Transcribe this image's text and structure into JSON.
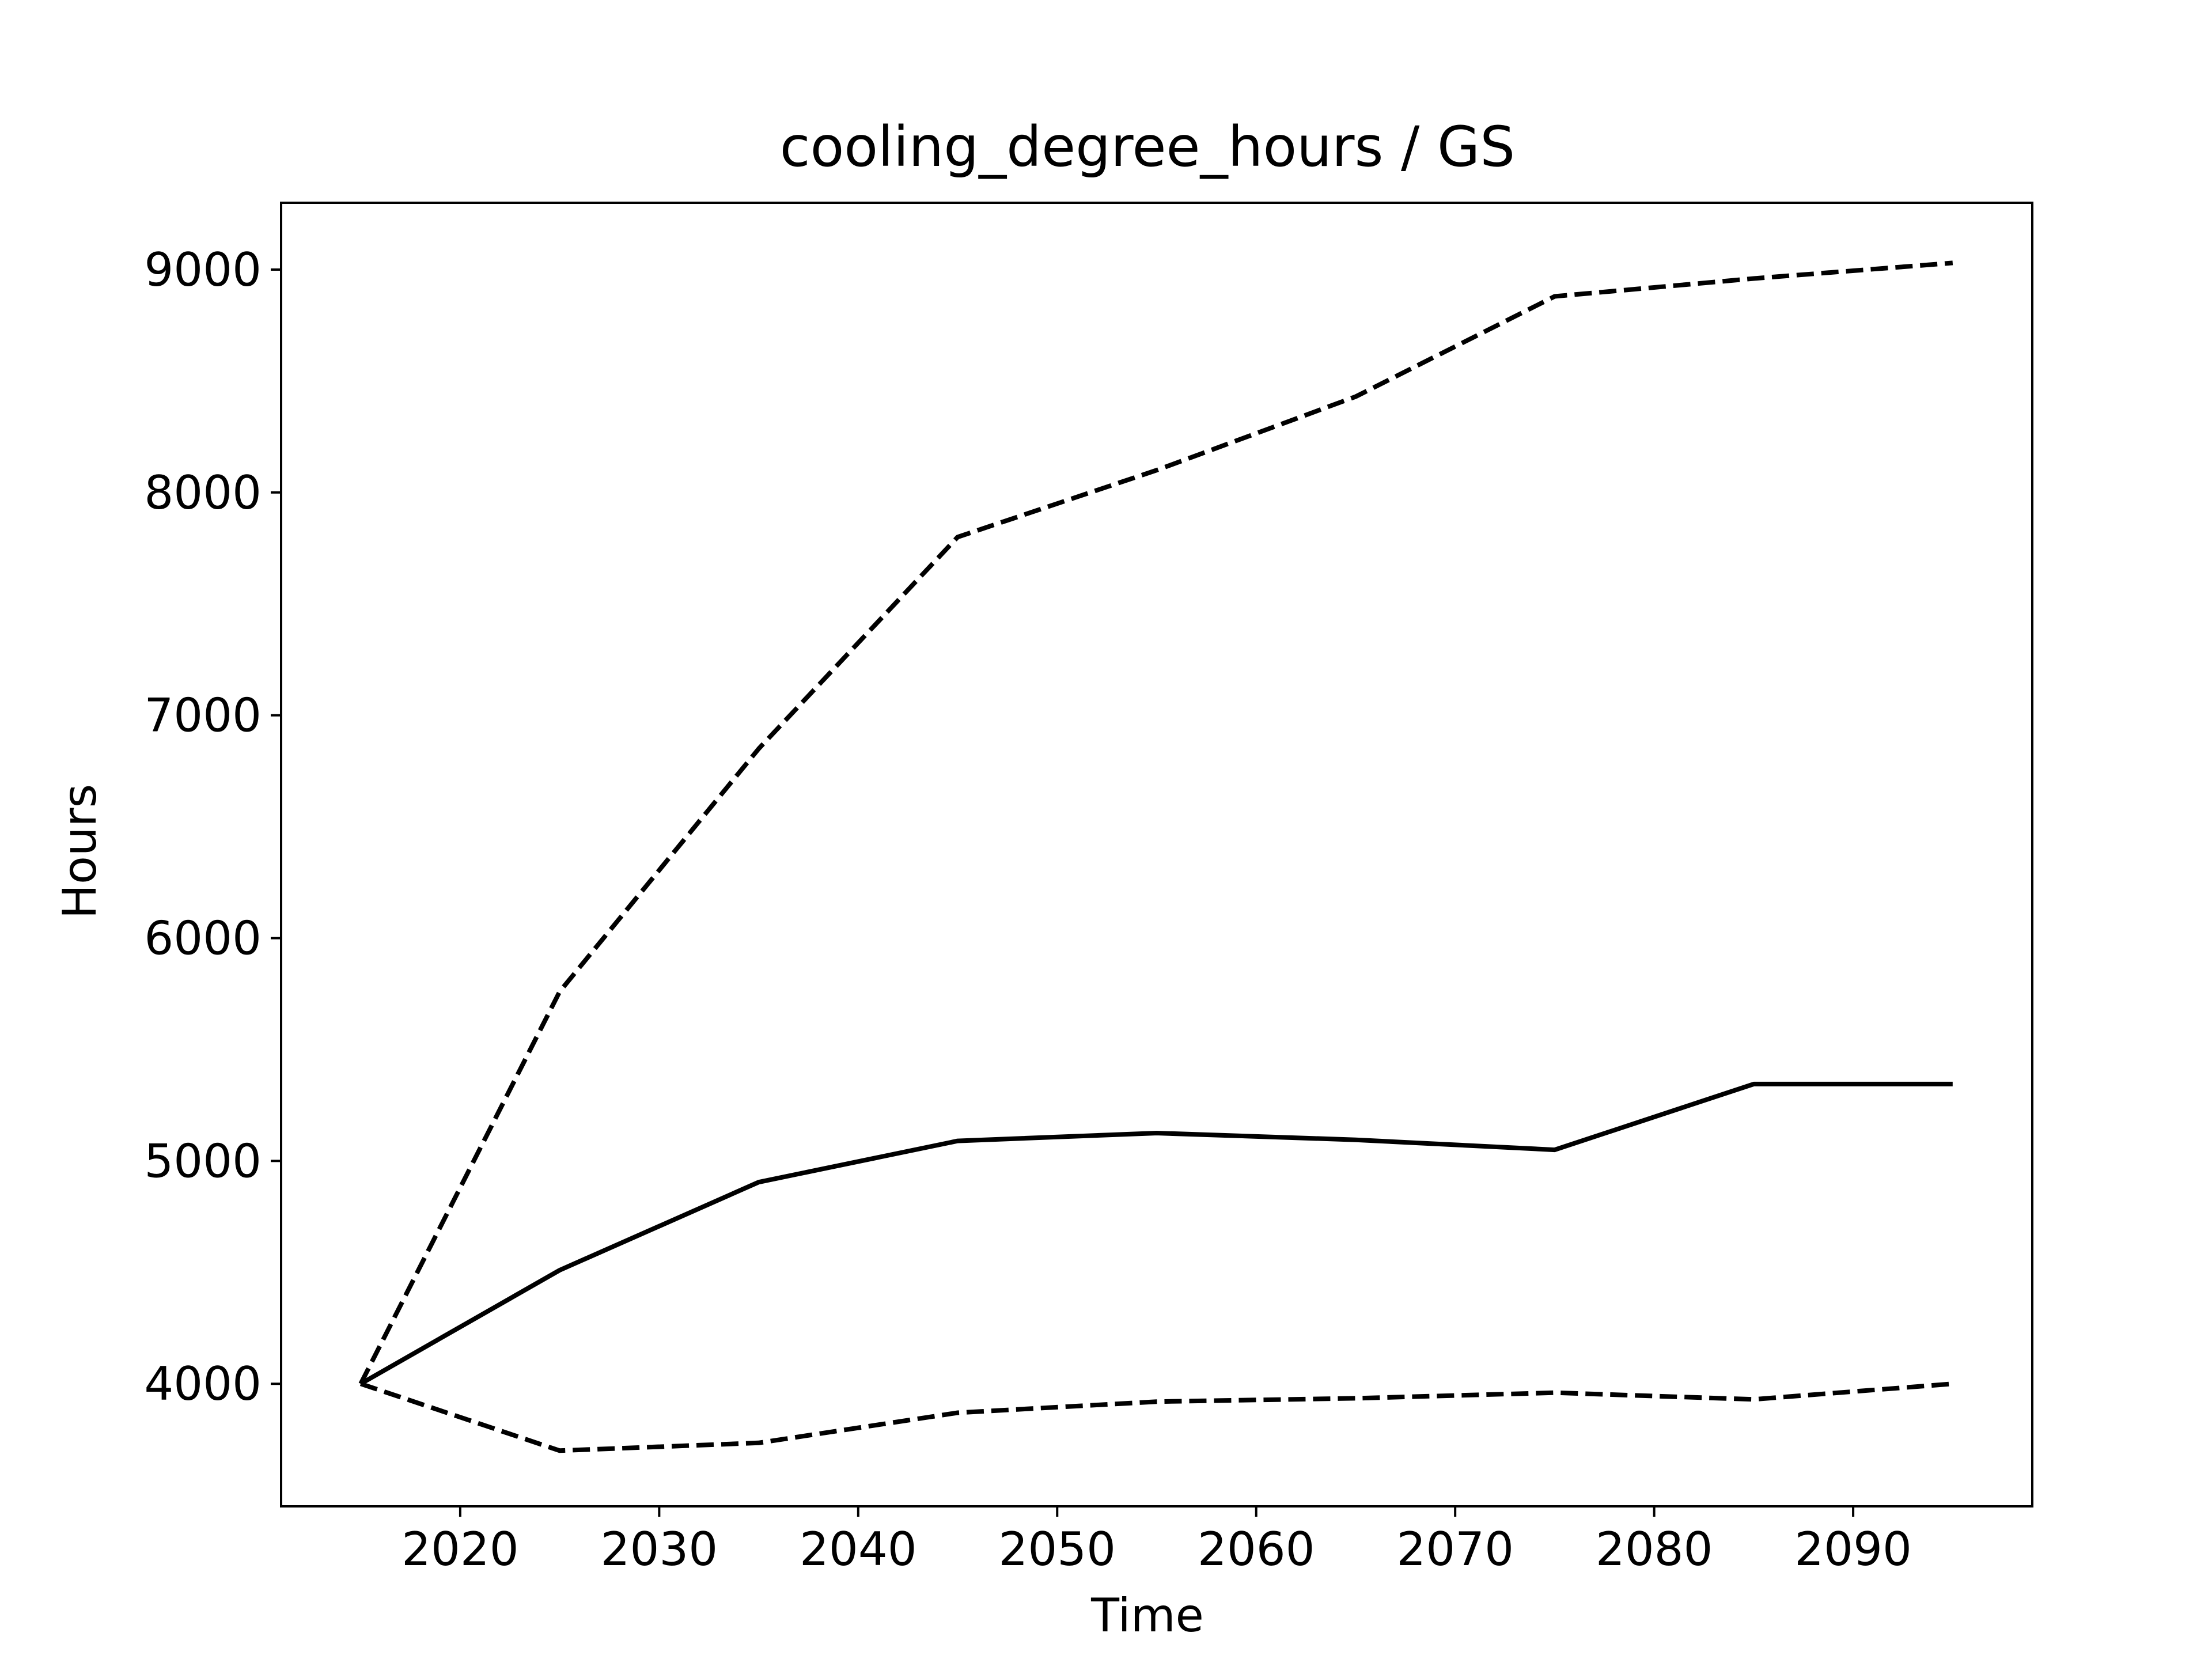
{
  "chart_data": {
    "type": "line",
    "title": "cooling_degree_hours / GS",
    "xlabel": "Time",
    "ylabel": "Hours",
    "xlim": [
      2011,
      2099
    ],
    "ylim": [
      3450,
      9300
    ],
    "xticks": [
      2020,
      2030,
      2040,
      2050,
      2060,
      2070,
      2080,
      2090
    ],
    "yticks": [
      4000,
      5000,
      6000,
      7000,
      8000,
      9000
    ],
    "grid": false,
    "x": [
      2015,
      2025,
      2035,
      2045,
      2055,
      2065,
      2075,
      2085,
      2095
    ],
    "series": [
      {
        "style": "solid",
        "color": "#000000",
        "values": [
          4000,
          4510,
          4905,
          5090,
          5125,
          5095,
          5050,
          5345,
          5345
        ]
      },
      {
        "style": "dashed",
        "color": "#000000",
        "values": [
          4000,
          5760,
          6850,
          7800,
          8100,
          8430,
          8880,
          8960,
          9030
        ]
      },
      {
        "style": "dashed",
        "color": "#000000",
        "values": [
          4000,
          3700,
          3735,
          3870,
          3920,
          3935,
          3960,
          3930,
          4000
        ]
      }
    ]
  }
}
